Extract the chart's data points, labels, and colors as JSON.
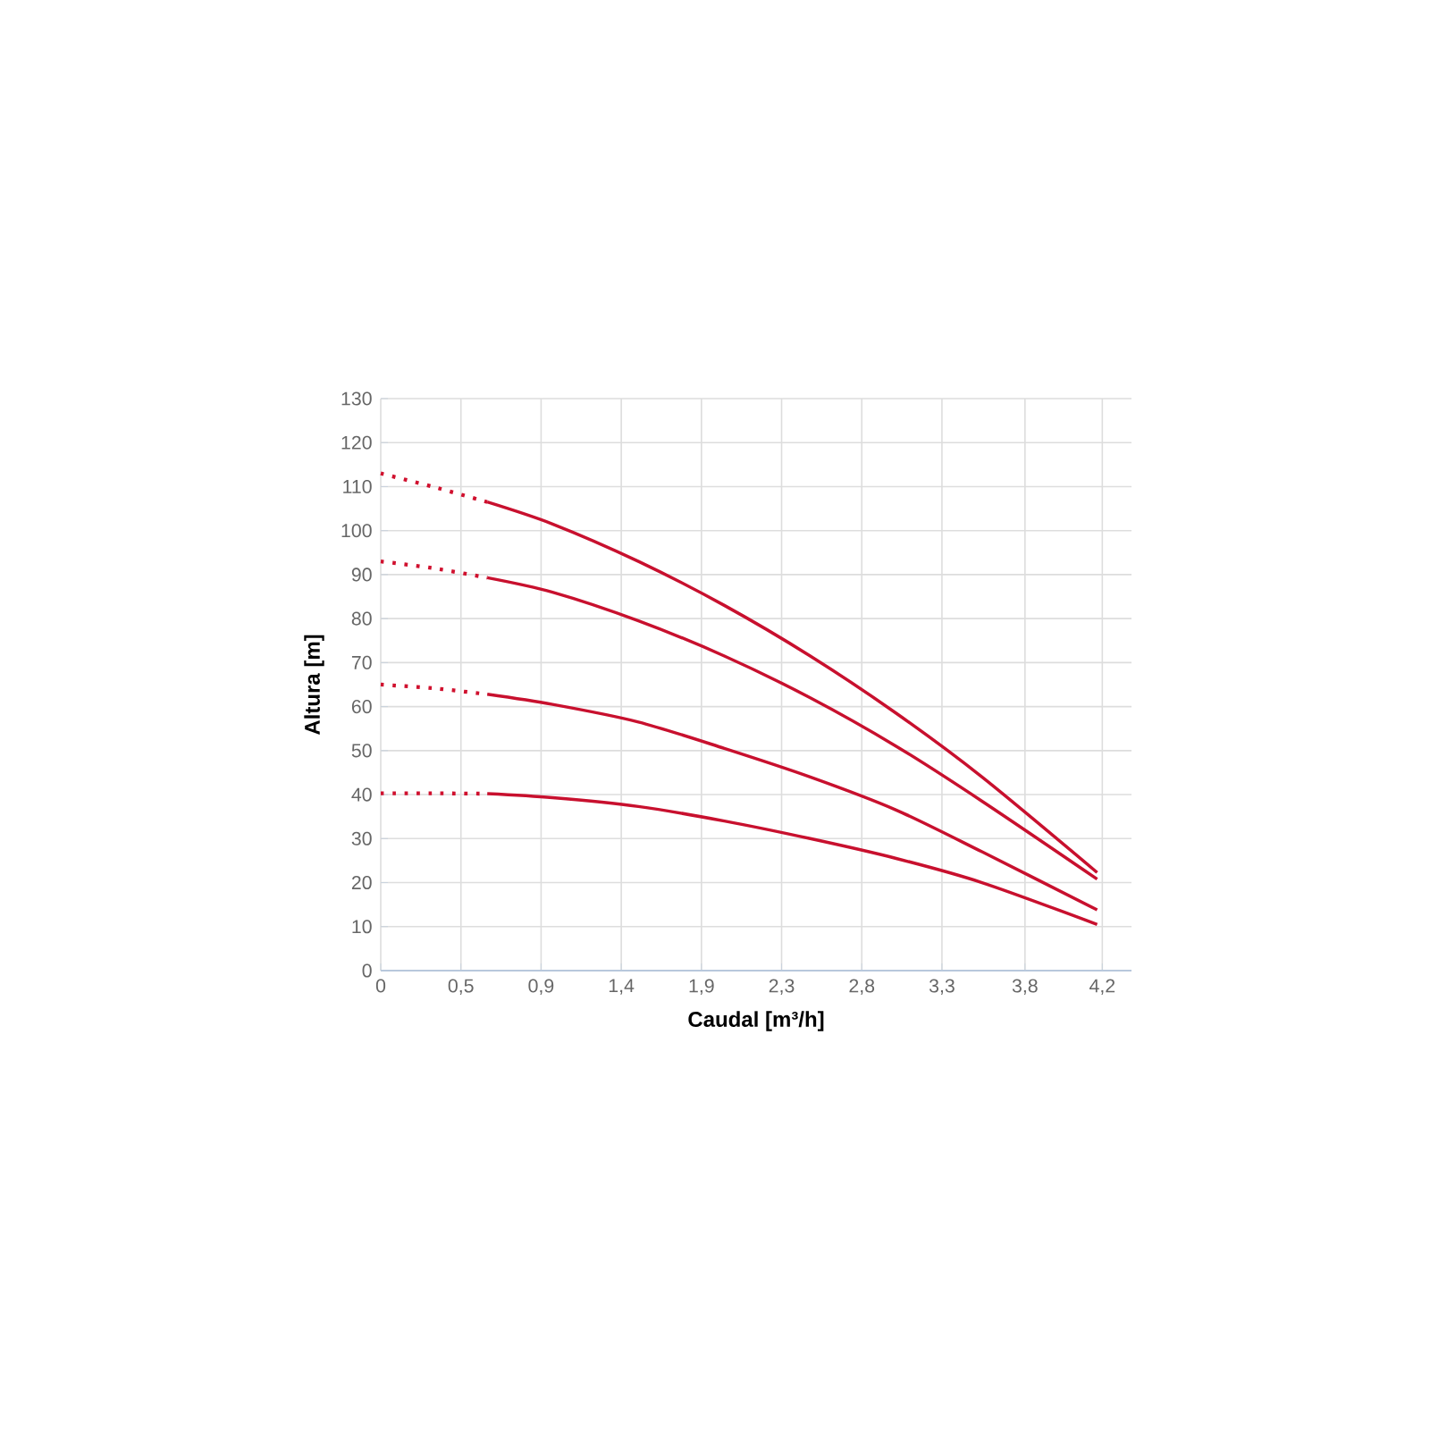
{
  "chart_data": {
    "type": "line",
    "xlabel": "Caudal [m³/h]",
    "ylabel": "Altura [m]",
    "xlim": [
      0,
      4.37
    ],
    "ylim": [
      0,
      130
    ],
    "xticks": [
      {
        "value": 0,
        "label": "0"
      },
      {
        "value": 0.4667,
        "label": "0,5"
      },
      {
        "value": 0.9333,
        "label": "0,9"
      },
      {
        "value": 1.4,
        "label": "1,4"
      },
      {
        "value": 1.8667,
        "label": "1,9"
      },
      {
        "value": 2.3333,
        "label": "2,3"
      },
      {
        "value": 2.8,
        "label": "2,8"
      },
      {
        "value": 3.2667,
        "label": "3,3"
      },
      {
        "value": 3.75,
        "label": "3,8"
      },
      {
        "value": 4.2,
        "label": "4,2"
      }
    ],
    "yticks": [
      0,
      10,
      20,
      30,
      40,
      50,
      60,
      70,
      80,
      90,
      100,
      110,
      120,
      130
    ],
    "grid": true,
    "series": [
      {
        "color": "#d0102e",
        "line_style": "dotted",
        "x": [
          0,
          0.3,
          0.62
        ],
        "values": [
          113,
          110,
          106.5
        ]
      },
      {
        "color": "#c8102e",
        "line_style": "solid",
        "x": [
          0.62,
          1.0,
          1.5,
          2.0,
          2.5,
          3.0,
          3.5,
          4.17
        ],
        "values": [
          106.5,
          101.5,
          93,
          83,
          71.5,
          58.5,
          44,
          22.3
        ]
      },
      {
        "color": "#d0102e",
        "line_style": "dotted",
        "x": [
          0,
          0.3,
          0.62
        ],
        "values": [
          93,
          91.5,
          89.3
        ]
      },
      {
        "color": "#c8102e",
        "line_style": "solid",
        "x": [
          0.62,
          1.0,
          1.5,
          2.0,
          2.5,
          3.0,
          3.5,
          4.17
        ],
        "values": [
          89.3,
          86,
          79.5,
          71.5,
          62,
          51,
          38.5,
          20.8
        ]
      },
      {
        "color": "#d0102e",
        "line_style": "dotted",
        "x": [
          0,
          0.3,
          0.62
        ],
        "values": [
          65,
          64.2,
          62.8
        ]
      },
      {
        "color": "#c8102e",
        "line_style": "solid",
        "x": [
          0.62,
          1.0,
          1.5,
          2.0,
          2.5,
          3.0,
          3.5,
          4.17
        ],
        "values": [
          62.8,
          60.5,
          56.5,
          50.5,
          44,
          36.5,
          27,
          13.8
        ]
      },
      {
        "color": "#d0102e",
        "line_style": "dotted",
        "x": [
          0,
          0.3,
          0.62
        ],
        "values": [
          40.3,
          40.3,
          40.2
        ]
      },
      {
        "color": "#c8102e",
        "line_style": "solid",
        "x": [
          0.62,
          1.0,
          1.5,
          2.0,
          2.5,
          3.0,
          3.5,
          4.17
        ],
        "values": [
          40.2,
          39.3,
          37.3,
          34,
          30,
          25.5,
          20,
          10.5
        ]
      }
    ]
  }
}
